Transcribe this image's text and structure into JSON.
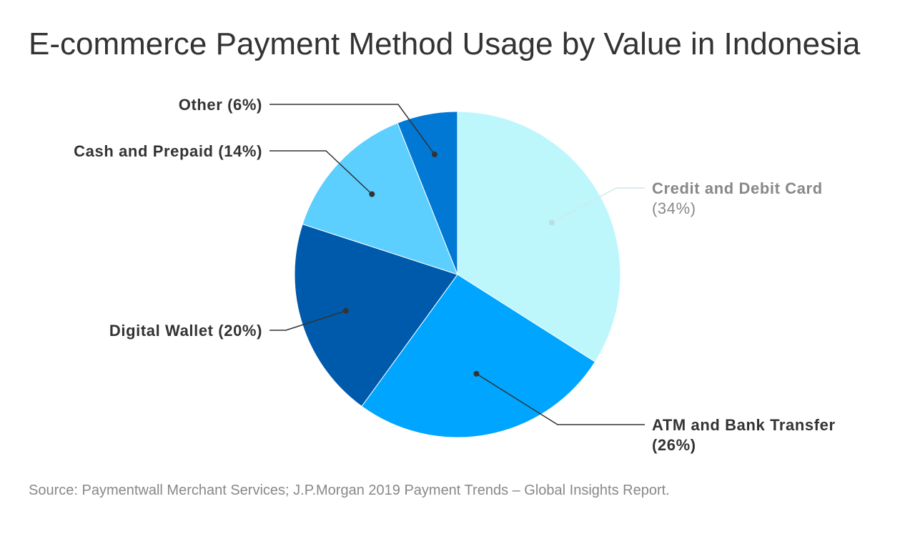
{
  "chart_data": {
    "type": "pie",
    "title": "E-commerce Payment Method Usage by Value in Indonesia",
    "slices": [
      {
        "label": "Credit and Debit Card",
        "pct_label": "(34%)",
        "value": 34,
        "color": "#bdf7fc"
      },
      {
        "label": "ATM and Bank Transfer",
        "pct_label": "(26%)",
        "value": 26,
        "color": "#00a5ff"
      },
      {
        "label": "Digital Wallet (20%)",
        "pct_label": "",
        "value": 20,
        "color": "#005aab"
      },
      {
        "label": "Cash and Prepaid (14%)",
        "pct_label": "",
        "value": 14,
        "color": "#5ccfff"
      },
      {
        "label": "Other (6%)",
        "pct_label": "",
        "value": 6,
        "color": "#0278d5"
      }
    ],
    "legend": "none",
    "source": "Source: Paymentwall Merchant Services; J.P.Morgan 2019 Payment Trends – Global Insights Report."
  }
}
